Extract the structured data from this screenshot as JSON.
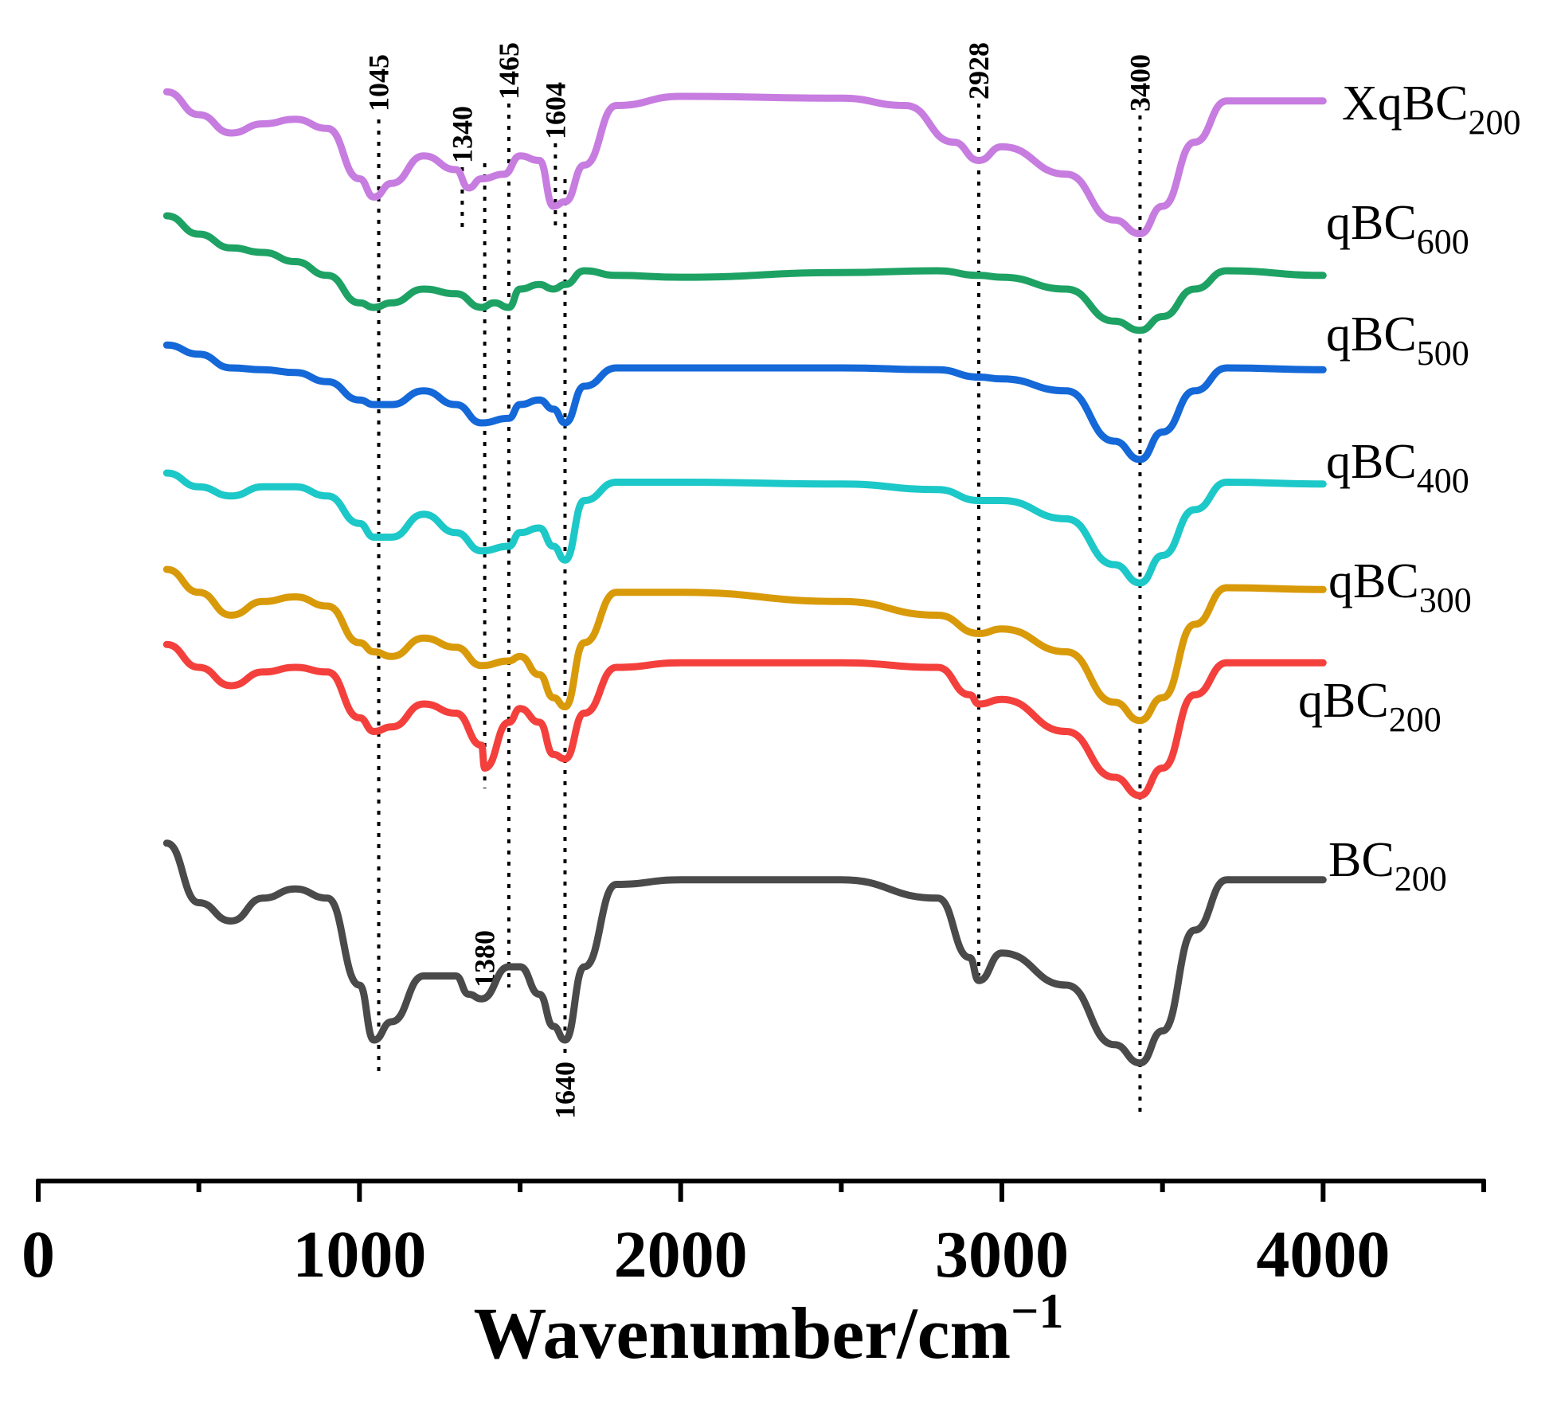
{
  "chart_data": {
    "type": "line",
    "title": "",
    "xlabel": "Wavenumber/cm",
    "xlabel_superscript": "−1",
    "ylabel": "",
    "xlim": [
      0,
      4500
    ],
    "x_ticks": [
      0,
      1000,
      2000,
      3000,
      4000
    ],
    "x_tick_labels": [
      "0",
      "1000",
      "2000",
      "3000",
      "4000"
    ],
    "x_minor_ticks": [
      500,
      1500,
      2500,
      3500,
      4500
    ],
    "y_axis_shown": false,
    "grid": false,
    "legend": "labels at right end of each curve",
    "peak_markers": [
      {
        "label": "1045",
        "x": 1060
      },
      {
        "label": "1340",
        "x": 1320
      },
      {
        "label": "1380",
        "x": 1390
      },
      {
        "label": "1465",
        "x": 1465
      },
      {
        "label": "1604",
        "x": 1610
      },
      {
        "label": "1640",
        "x": 1640
      },
      {
        "label": "2928",
        "x": 2928
      },
      {
        "label": "3400",
        "x": 3430
      }
    ],
    "series": [
      {
        "name": "XqBC",
        "name_subscript": "200",
        "color": "#c77ce0",
        "y_units": "relative transmittance (offset, arbitrary units)",
        "points": [
          [
            400,
            165
          ],
          [
            500,
            140
          ],
          [
            600,
            120
          ],
          [
            700,
            130
          ],
          [
            800,
            135
          ],
          [
            900,
            125
          ],
          [
            1000,
            70
          ],
          [
            1045,
            50
          ],
          [
            1100,
            65
          ],
          [
            1200,
            95
          ],
          [
            1300,
            80
          ],
          [
            1340,
            60
          ],
          [
            1380,
            70
          ],
          [
            1450,
            75
          ],
          [
            1500,
            95
          ],
          [
            1560,
            90
          ],
          [
            1604,
            40
          ],
          [
            1640,
            45
          ],
          [
            1700,
            85
          ],
          [
            1800,
            150
          ],
          [
            2000,
            160
          ],
          [
            2500,
            158
          ],
          [
            2700,
            150
          ],
          [
            2850,
            110
          ],
          [
            2928,
            90
          ],
          [
            3000,
            105
          ],
          [
            3200,
            75
          ],
          [
            3350,
            25
          ],
          [
            3430,
            10
          ],
          [
            3500,
            40
          ],
          [
            3600,
            110
          ],
          [
            3700,
            155
          ],
          [
            4000,
            155
          ]
        ]
      },
      {
        "name": "qBC",
        "name_subscript": "600",
        "color": "#1da264",
        "y_units": "relative transmittance (offset, arbitrary units)",
        "points": [
          [
            400,
            160
          ],
          [
            500,
            140
          ],
          [
            600,
            125
          ],
          [
            700,
            120
          ],
          [
            800,
            110
          ],
          [
            900,
            95
          ],
          [
            1000,
            65
          ],
          [
            1045,
            60
          ],
          [
            1100,
            65
          ],
          [
            1200,
            80
          ],
          [
            1300,
            75
          ],
          [
            1380,
            60
          ],
          [
            1420,
            65
          ],
          [
            1465,
            60
          ],
          [
            1500,
            80
          ],
          [
            1560,
            85
          ],
          [
            1604,
            80
          ],
          [
            1640,
            85
          ],
          [
            1700,
            100
          ],
          [
            1800,
            95
          ],
          [
            2000,
            93
          ],
          [
            2500,
            98
          ],
          [
            2800,
            100
          ],
          [
            2928,
            95
          ],
          [
            3000,
            93
          ],
          [
            3200,
            80
          ],
          [
            3350,
            45
          ],
          [
            3430,
            35
          ],
          [
            3500,
            50
          ],
          [
            3600,
            80
          ],
          [
            3700,
            100
          ],
          [
            4000,
            95
          ]
        ]
      },
      {
        "name": "qBC",
        "name_subscript": "500",
        "color": "#1468d8",
        "y_units": "relative transmittance (offset, arbitrary units)",
        "points": [
          [
            400,
            145
          ],
          [
            500,
            135
          ],
          [
            600,
            120
          ],
          [
            700,
            118
          ],
          [
            800,
            115
          ],
          [
            900,
            105
          ],
          [
            1000,
            85
          ],
          [
            1045,
            80
          ],
          [
            1100,
            80
          ],
          [
            1200,
            95
          ],
          [
            1300,
            80
          ],
          [
            1380,
            60
          ],
          [
            1465,
            65
          ],
          [
            1500,
            80
          ],
          [
            1560,
            85
          ],
          [
            1604,
            75
          ],
          [
            1640,
            60
          ],
          [
            1700,
            100
          ],
          [
            1800,
            120
          ],
          [
            2000,
            120
          ],
          [
            2500,
            120
          ],
          [
            2800,
            118
          ],
          [
            2928,
            110
          ],
          [
            3000,
            108
          ],
          [
            3200,
            95
          ],
          [
            3350,
            40
          ],
          [
            3430,
            20
          ],
          [
            3500,
            50
          ],
          [
            3600,
            95
          ],
          [
            3700,
            120
          ],
          [
            4000,
            118
          ]
        ]
      },
      {
        "name": "qBC",
        "name_subscript": "400",
        "color": "#1cc8c8",
        "y_units": "relative transmittance (offset, arbitrary units)",
        "points": [
          [
            400,
            140
          ],
          [
            500,
            125
          ],
          [
            600,
            115
          ],
          [
            700,
            125
          ],
          [
            800,
            125
          ],
          [
            900,
            115
          ],
          [
            1000,
            85
          ],
          [
            1045,
            70
          ],
          [
            1100,
            70
          ],
          [
            1200,
            95
          ],
          [
            1300,
            75
          ],
          [
            1380,
            55
          ],
          [
            1465,
            60
          ],
          [
            1500,
            75
          ],
          [
            1560,
            80
          ],
          [
            1604,
            60
          ],
          [
            1640,
            45
          ],
          [
            1700,
            110
          ],
          [
            1800,
            130
          ],
          [
            2000,
            130
          ],
          [
            2500,
            128
          ],
          [
            2800,
            122
          ],
          [
            2928,
            110
          ],
          [
            3000,
            110
          ],
          [
            3200,
            90
          ],
          [
            3350,
            40
          ],
          [
            3430,
            20
          ],
          [
            3500,
            50
          ],
          [
            3600,
            100
          ],
          [
            3700,
            130
          ],
          [
            4000,
            128
          ]
        ]
      },
      {
        "name": "qBC",
        "name_subscript": "300",
        "color": "#d99a0a",
        "y_units": "relative transmittance (offset, arbitrary units)",
        "points": [
          [
            400,
            200
          ],
          [
            500,
            175
          ],
          [
            600,
            150
          ],
          [
            700,
            165
          ],
          [
            800,
            170
          ],
          [
            900,
            160
          ],
          [
            1000,
            120
          ],
          [
            1045,
            110
          ],
          [
            1100,
            105
          ],
          [
            1200,
            125
          ],
          [
            1300,
            115
          ],
          [
            1380,
            95
          ],
          [
            1465,
            100
          ],
          [
            1500,
            105
          ],
          [
            1560,
            85
          ],
          [
            1604,
            60
          ],
          [
            1640,
            50
          ],
          [
            1700,
            120
          ],
          [
            1800,
            175
          ],
          [
            2000,
            175
          ],
          [
            2500,
            165
          ],
          [
            2800,
            150
          ],
          [
            2928,
            130
          ],
          [
            3000,
            135
          ],
          [
            3200,
            110
          ],
          [
            3350,
            55
          ],
          [
            3430,
            35
          ],
          [
            3500,
            60
          ],
          [
            3600,
            140
          ],
          [
            3700,
            180
          ],
          [
            4000,
            178
          ]
        ]
      },
      {
        "name": "qBC",
        "name_subscript": "200",
        "color": "#f4403c",
        "y_units": "relative transmittance (offset, arbitrary units)",
        "points": [
          [
            400,
            205
          ],
          [
            500,
            180
          ],
          [
            600,
            160
          ],
          [
            700,
            175
          ],
          [
            800,
            180
          ],
          [
            900,
            175
          ],
          [
            1000,
            125
          ],
          [
            1045,
            110
          ],
          [
            1100,
            115
          ],
          [
            1200,
            140
          ],
          [
            1300,
            130
          ],
          [
            1380,
            95
          ],
          [
            1390,
            70
          ],
          [
            1465,
            120
          ],
          [
            1500,
            135
          ],
          [
            1560,
            120
          ],
          [
            1604,
            85
          ],
          [
            1640,
            80
          ],
          [
            1700,
            130
          ],
          [
            1800,
            180
          ],
          [
            2000,
            185
          ],
          [
            2500,
            185
          ],
          [
            2800,
            180
          ],
          [
            2900,
            150
          ],
          [
            2928,
            140
          ],
          [
            3000,
            145
          ],
          [
            3200,
            110
          ],
          [
            3350,
            60
          ],
          [
            3430,
            40
          ],
          [
            3500,
            70
          ],
          [
            3600,
            150
          ],
          [
            3700,
            185
          ],
          [
            4000,
            185
          ]
        ]
      },
      {
        "name": "BC",
        "name_subscript": "200",
        "color": "#4a4a4a",
        "y_units": "relative transmittance (offset, arbitrary units)",
        "points": [
          [
            400,
            275
          ],
          [
            500,
            210
          ],
          [
            600,
            190
          ],
          [
            700,
            215
          ],
          [
            800,
            225
          ],
          [
            900,
            215
          ],
          [
            1000,
            120
          ],
          [
            1045,
            60
          ],
          [
            1100,
            80
          ],
          [
            1200,
            130
          ],
          [
            1300,
            130
          ],
          [
            1340,
            110
          ],
          [
            1380,
            105
          ],
          [
            1465,
            140
          ],
          [
            1500,
            140
          ],
          [
            1560,
            110
          ],
          [
            1604,
            75
          ],
          [
            1640,
            60
          ],
          [
            1700,
            140
          ],
          [
            1800,
            230
          ],
          [
            2000,
            235
          ],
          [
            2500,
            235
          ],
          [
            2800,
            215
          ],
          [
            2900,
            150
          ],
          [
            2928,
            125
          ],
          [
            3000,
            155
          ],
          [
            3200,
            120
          ],
          [
            3350,
            55
          ],
          [
            3430,
            35
          ],
          [
            3500,
            70
          ],
          [
            3600,
            180
          ],
          [
            3700,
            235
          ],
          [
            4000,
            235
          ]
        ]
      }
    ]
  }
}
